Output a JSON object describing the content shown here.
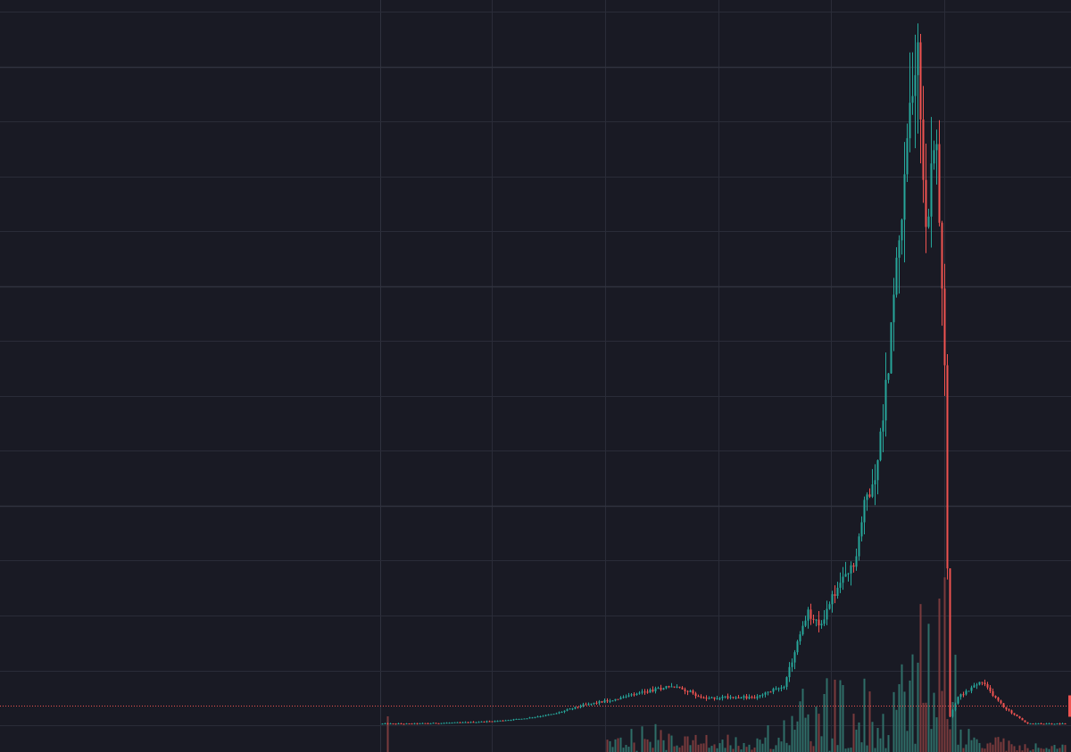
{
  "chart_data": {
    "type": "candlestick",
    "title": "",
    "xlabel": "",
    "ylabel": "",
    "grid": true,
    "axis_labels_visible": false,
    "price_line_visible": true,
    "colors": {
      "background": "#191a24",
      "grid": "#2a2c38",
      "grid_major": "#30323e",
      "up": "#26a69a",
      "down": "#ef5350",
      "price_line": "#ef5350",
      "volume_up": "#2f6e68",
      "volume_down": "#7a3b3d"
    },
    "price_path": [
      [
        0.0,
        3.0
      ],
      [
        0.05,
        3.0
      ],
      [
        0.15,
        4.3
      ],
      [
        0.2,
        5.5
      ],
      [
        0.25,
        8.0
      ],
      [
        0.3,
        12.0
      ],
      [
        0.35,
        20.0
      ],
      [
        0.4,
        25.0
      ],
      [
        0.45,
        31.0
      ],
      [
        0.5,
        38.0
      ],
      [
        0.53,
        34.0
      ],
      [
        0.56,
        26.0
      ],
      [
        0.6,
        28.0
      ],
      [
        0.65,
        27.0
      ],
      [
        0.7,
        39.0
      ],
      [
        0.72,
        75.0
      ],
      [
        0.74,
        105.0
      ],
      [
        0.76,
        92.0
      ],
      [
        0.78,
        118.0
      ],
      [
        0.82,
        150.0
      ],
      [
        0.84,
        210.0
      ],
      [
        0.86,
        240.0
      ],
      [
        0.88,
        340.0
      ],
      [
        0.9,
        470.0
      ],
      [
        0.915,
        560.0
      ],
      [
        0.93,
        640.0
      ],
      [
        0.945,
        450.0
      ],
      [
        0.96,
        560.0
      ],
      [
        0.975,
        390.0
      ],
      [
        0.985,
        8.0
      ],
      [
        1.0,
        28.0
      ],
      [
        1.04,
        42.0
      ],
      [
        1.08,
        18.0
      ],
      [
        1.12,
        3.0
      ]
    ]
  }
}
